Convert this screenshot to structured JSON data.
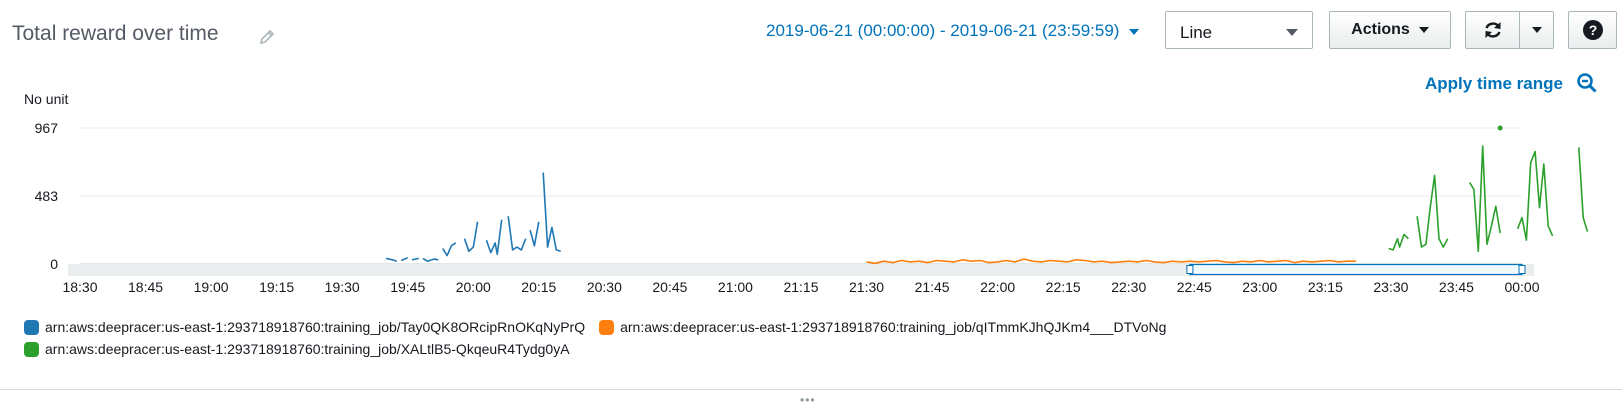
{
  "header": {
    "title": "Total reward over time",
    "time_range": "2019-06-21 (00:00:00) - 2019-06-21 (23:59:59)",
    "chart_type_value": "Line",
    "actions_label": "Actions",
    "help_label": "?",
    "apply_label": "Apply time range"
  },
  "colors": {
    "link": "#0073bb",
    "series_blue": "#1f77b4",
    "series_orange": "#ff7f0e",
    "series_green": "#2ca02c"
  },
  "icons": [
    "pencil-icon",
    "chevron-down-icon",
    "refresh-icon",
    "help-icon",
    "zoom-out-icon",
    "drag-handle-icon"
  ],
  "chart_data": {
    "type": "line",
    "ylabel": "No unit",
    "y_ticks": [
      0,
      483,
      967
    ],
    "ylim": [
      0,
      967
    ],
    "x_tick_labels": [
      "18:30",
      "18:45",
      "19:00",
      "19:15",
      "19:30",
      "19:45",
      "20:00",
      "20:15",
      "20:30",
      "20:45",
      "21:00",
      "21:15",
      "21:30",
      "21:45",
      "22:00",
      "22:15",
      "22:30",
      "22:45",
      "23:00",
      "23:15",
      "23:30",
      "23:45",
      "00:00"
    ],
    "x_range_minutes": [
      1110,
      1440
    ],
    "grid": "horizontal",
    "legend_position": "bottom",
    "selected_range_minutes": [
      1364,
      1440
    ],
    "series": [
      {
        "name": "arn:aws:deepracer:us-east-1:293718918760:training_job/Tay0QK8ORcipRnOKqNyPrQ",
        "segments": [
          [
            [
              1180,
              40
            ],
            [
              1181.5,
              30
            ],
            [
              1182.5,
              20
            ]
          ],
          [
            [
              1183.5,
              25
            ],
            [
              1185,
              45
            ]
          ],
          [
            [
              1186,
              30
            ],
            [
              1187.5,
              40
            ]
          ],
          [
            [
              1188.5,
              40
            ],
            [
              1189.5,
              20
            ],
            [
              1191,
              35
            ],
            [
              1192,
              30
            ]
          ],
          [
            [
              1193,
              110
            ],
            [
              1194,
              60
            ],
            [
              1195,
              130
            ],
            [
              1196,
              150
            ]
          ],
          [
            [
              1198,
              180
            ],
            [
              1199,
              90
            ],
            [
              1200,
              120
            ],
            [
              1201,
              300
            ]
          ],
          [
            [
              1203,
              170
            ],
            [
              1204,
              80
            ],
            [
              1205,
              150
            ],
            [
              1205.5,
              70
            ],
            [
              1206.5,
              315
            ]
          ],
          [
            [
              1208,
              340
            ],
            [
              1209,
              100
            ],
            [
              1210,
              120
            ],
            [
              1211,
              100
            ],
            [
              1212,
              180
            ]
          ],
          [
            [
              1213,
              240
            ],
            [
              1214,
              130
            ],
            [
              1215,
              300
            ]
          ],
          [
            [
              1216,
              650
            ],
            [
              1217,
              120
            ],
            [
              1218,
              260
            ],
            [
              1219,
              100
            ],
            [
              1220,
              90
            ]
          ]
        ]
      },
      {
        "name": "arn:aws:deepracer:us-east-1:293718918760:training_job/qITmmKJhQJKm4___DTVoNg",
        "segments": [
          [
            [
              1290,
              15
            ],
            [
              1292,
              5
            ],
            [
              1294,
              20
            ],
            [
              1296,
              10
            ],
            [
              1298,
              25
            ],
            [
              1300,
              15
            ],
            [
              1302,
              20
            ],
            [
              1304,
              10
            ],
            [
              1306,
              25
            ],
            [
              1308,
              20
            ],
            [
              1310,
              15
            ],
            [
              1312,
              30
            ],
            [
              1314,
              20
            ],
            [
              1316,
              25
            ],
            [
              1318,
              10
            ],
            [
              1320,
              15
            ],
            [
              1322,
              25
            ],
            [
              1324,
              15
            ],
            [
              1326,
              35
            ],
            [
              1328,
              20
            ],
            [
              1330,
              15
            ],
            [
              1332,
              25
            ],
            [
              1334,
              20
            ],
            [
              1336,
              15
            ],
            [
              1338,
              30
            ],
            [
              1340,
              25
            ],
            [
              1342,
              15
            ],
            [
              1344,
              20
            ],
            [
              1346,
              10
            ],
            [
              1348,
              15
            ],
            [
              1350,
              20
            ],
            [
              1352,
              15
            ],
            [
              1354,
              25
            ],
            [
              1356,
              15
            ],
            [
              1358,
              10
            ],
            [
              1360,
              20
            ],
            [
              1362,
              15
            ],
            [
              1364,
              20
            ],
            [
              1366,
              15
            ],
            [
              1368,
              20
            ],
            [
              1370,
              25
            ],
            [
              1372,
              15
            ],
            [
              1374,
              10
            ],
            [
              1376,
              20
            ],
            [
              1378,
              15
            ],
            [
              1380,
              25
            ],
            [
              1382,
              15
            ],
            [
              1384,
              20
            ],
            [
              1386,
              25
            ],
            [
              1388,
              10
            ],
            [
              1390,
              20
            ],
            [
              1392,
              15
            ],
            [
              1394,
              20
            ],
            [
              1396,
              25
            ],
            [
              1398,
              15
            ],
            [
              1400,
              20
            ],
            [
              1402,
              20
            ]
          ]
        ]
      },
      {
        "name": "arn:aws:deepracer:us-east-1:293718918760:training_job/XALtlB5-QkqeuR4Tydg0yA",
        "segments": [
          [
            [
              1409.5,
              110
            ],
            [
              1410.5,
              100
            ],
            [
              1411.5,
              180
            ],
            [
              1412,
              120
            ],
            [
              1413,
              210
            ],
            [
              1414,
              180
            ]
          ],
          [
            [
              1416,
              340
            ],
            [
              1417,
              120
            ],
            [
              1418,
              140
            ],
            [
              1419,
              400
            ],
            [
              1420,
              630
            ],
            [
              1421,
              180
            ],
            [
              1422,
              120
            ],
            [
              1423,
              180
            ]
          ],
          [
            [
              1428,
              580
            ],
            [
              1429,
              530
            ],
            [
              1430,
              90
            ],
            [
              1431,
              840
            ],
            [
              1432,
              140
            ],
            [
              1433,
              270
            ],
            [
              1434,
              410
            ],
            [
              1435,
              220
            ]
          ],
          [
            [
              1439,
              250
            ],
            [
              1440,
              330
            ],
            [
              1441,
              170
            ],
            [
              1442,
              720
            ],
            [
              1443,
              800
            ],
            [
              1444,
              400
            ],
            [
              1445,
              710
            ],
            [
              1446,
              270
            ],
            [
              1447,
              200
            ]
          ],
          [
            [
              1453,
              830
            ],
            [
              1454,
              330
            ],
            [
              1455,
              230
            ]
          ]
        ],
        "points": [
          [
            1435,
            967
          ]
        ]
      }
    ]
  }
}
